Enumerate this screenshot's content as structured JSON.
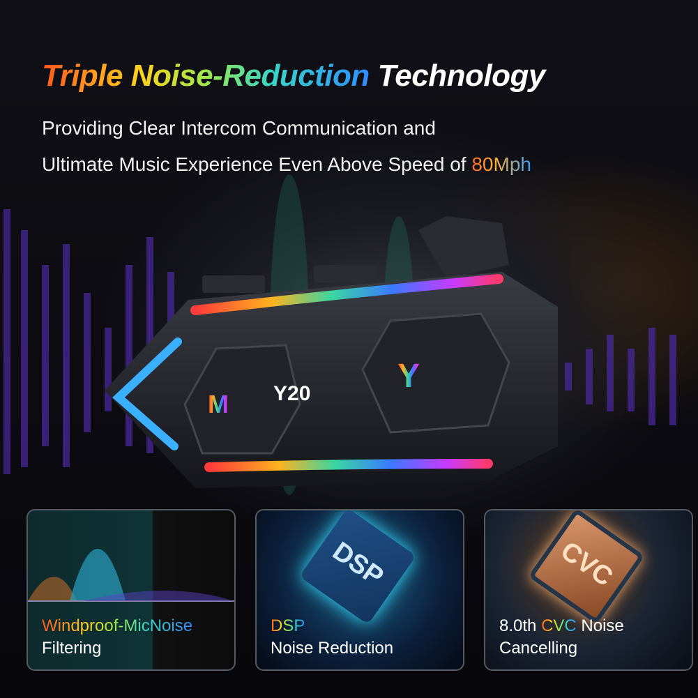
{
  "headline": {
    "colored": "Triple Noise-Reduction",
    "plain": "Technology"
  },
  "subtitle": {
    "line1": "Providing Clear Intercom Communication and",
    "line2_prefix": "Ultimate Music Experience Even Above Speed of",
    "speed": "80Mph"
  },
  "device": {
    "logo_left": "M",
    "model": "20",
    "logo_right": "Y"
  },
  "cards": [
    {
      "highlight": "Windproof-MicNoise",
      "text": "Filtering"
    },
    {
      "chip": "DSP",
      "highlight": "DSP",
      "text": "Noise Reduction"
    },
    {
      "chip": "CVC",
      "prefix": "8.0th",
      "highlight": "CVC",
      "suffix": "Noise",
      "text": "Cancelling"
    }
  ]
}
